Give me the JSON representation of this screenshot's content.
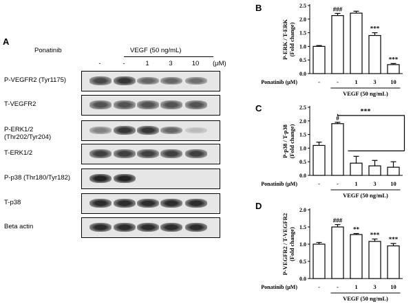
{
  "panel_a": {
    "letter": "A",
    "treatment_label": "Ponatinib",
    "vegf_label": "VEGF (50 ng/mL)",
    "unit": "(μM)",
    "lanes": [
      "-",
      "-",
      "1",
      "3",
      "10"
    ],
    "blots": [
      {
        "label": "P-VEGFR2 (Tyr1175)",
        "intensities": [
          0.75,
          0.85,
          0.6,
          0.6,
          0.55
        ]
      },
      {
        "label": "T-VEGFR2",
        "intensities": [
          0.7,
          0.7,
          0.7,
          0.7,
          0.7
        ]
      },
      {
        "label": "P-ERK1/2 (Thr202/Tyr204)",
        "intensities": [
          0.45,
          0.85,
          0.85,
          0.6,
          0.15
        ]
      },
      {
        "label": "T-ERK1/2",
        "intensities": [
          0.8,
          0.8,
          0.8,
          0.8,
          0.8
        ]
      },
      {
        "label": "P-p38 (Thr180/Tyr182)",
        "intensities": [
          0.95,
          0.95,
          0.0,
          0.0,
          0.0
        ]
      },
      {
        "label": "T-p38",
        "intensities": [
          0.9,
          0.9,
          0.9,
          0.9,
          0.9
        ]
      },
      {
        "label": "Beta actin",
        "intensities": [
          0.9,
          0.9,
          0.9,
          0.9,
          0.9
        ]
      }
    ]
  },
  "chart_data": [
    {
      "letter": "B",
      "type": "bar",
      "ylabel": "P-ERK / T-ERK\n(Fold change)",
      "ylim": [
        0,
        2.5
      ],
      "yticks": [
        "0.0",
        "0.5",
        "1.0",
        "1.5",
        "2.0",
        "2.5"
      ],
      "categories": [
        "-",
        "-",
        "1",
        "3",
        "10"
      ],
      "values": [
        1.0,
        2.13,
        2.22,
        1.4,
        0.33
      ],
      "errors": [
        0.03,
        0.08,
        0.07,
        0.1,
        0.04
      ],
      "annotations": [
        "",
        "###",
        "",
        "***",
        "***"
      ],
      "xlabel_left": "Ponatinib (μM)",
      "group_label": "VEGF (50 ng/mL)"
    },
    {
      "letter": "C",
      "type": "bar",
      "ylabel": "P-p38 / T-p38\n(Fold change)",
      "ylim": [
        0,
        2.5
      ],
      "yticks": [
        "0.0",
        "0.5",
        "1.0",
        "1.5",
        "2.0",
        "2.5"
      ],
      "categories": [
        "-",
        "-",
        "1",
        "3",
        "10"
      ],
      "values": [
        1.1,
        1.9,
        0.45,
        0.35,
        0.3
      ],
      "errors": [
        0.12,
        0.05,
        0.25,
        0.2,
        0.2
      ],
      "annotations": [
        "",
        "#",
        "",
        "",
        ""
      ],
      "bracket_label": "***",
      "xlabel_left": "Ponatinib (μM)",
      "group_label": "VEGF (50 ng/mL)"
    },
    {
      "letter": "D",
      "type": "bar",
      "ylabel": "P-VEGFR2 / T-VEGFR2\n(Fold change)",
      "ylim": [
        0,
        2.0
      ],
      "yticks": [
        "0.0",
        "0.5",
        "1.0",
        "1.5",
        "2.0"
      ],
      "categories": [
        "-",
        "-",
        "1",
        "3",
        "10"
      ],
      "values": [
        1.0,
        1.5,
        1.28,
        1.08,
        0.95
      ],
      "errors": [
        0.05,
        0.07,
        0.03,
        0.07,
        0.07
      ],
      "annotations": [
        "",
        "###",
        "**",
        "***",
        "***"
      ],
      "xlabel_left": "Ponatinib (μM)",
      "group_label": "VEGF (50 ng/mL)"
    }
  ]
}
